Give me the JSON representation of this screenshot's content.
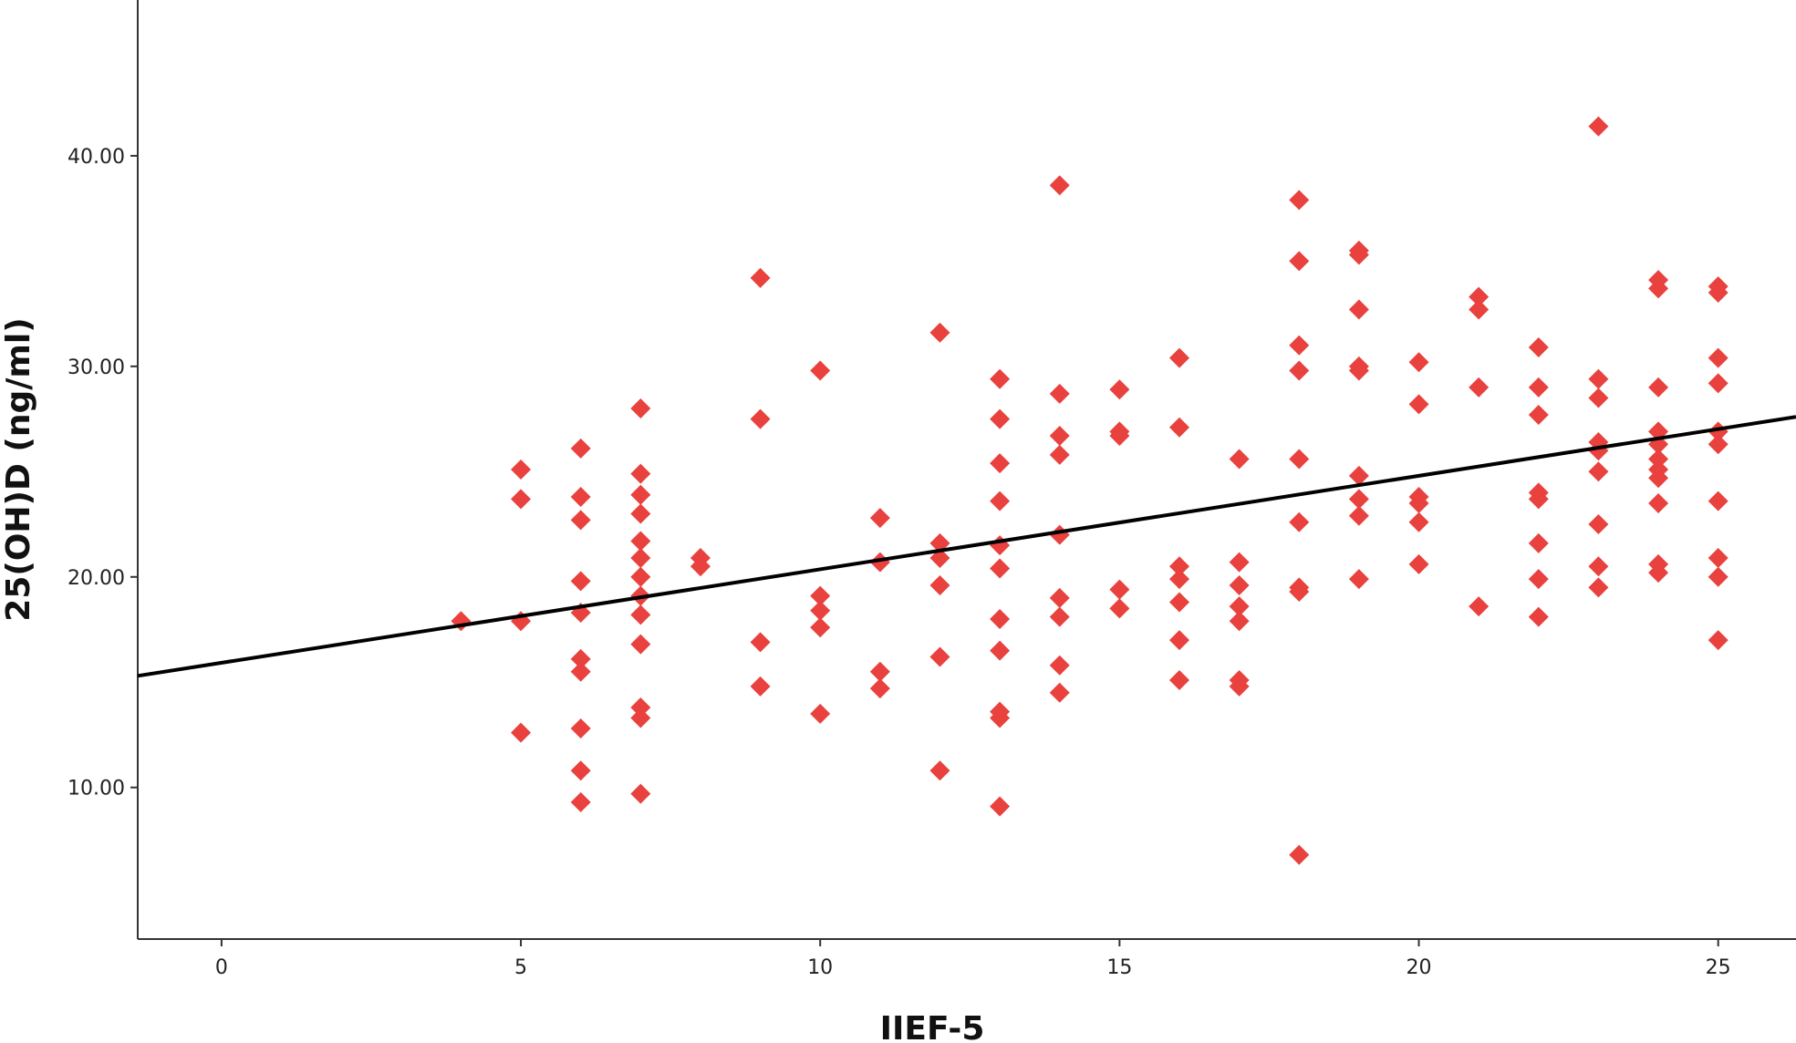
{
  "chart_data": {
    "type": "scatter",
    "xlabel": "IIEF-5",
    "ylabel": "25(OH)D (ng/ml)",
    "xlim": [
      -1.4,
      26.3
    ],
    "ylim": [
      2.8,
      47.4
    ],
    "x_ticks": [
      0,
      5,
      10,
      15,
      20,
      25
    ],
    "x_tick_labels": [
      "0",
      "5",
      "10",
      "15",
      "20",
      "25"
    ],
    "y_ticks": [
      10,
      20,
      30,
      40
    ],
    "y_tick_labels": [
      "10.00",
      "20.00",
      "30.00",
      "40.00"
    ],
    "grid": false,
    "marker_color": "#e8413e",
    "fit_line_color": "#000000",
    "fit_line": {
      "x": [
        -1.4,
        26.3
      ],
      "y": [
        15.3,
        27.6
      ]
    },
    "points": [
      {
        "x": 4,
        "y": 17.9
      },
      {
        "x": 5,
        "y": 25.1
      },
      {
        "x": 5,
        "y": 23.7
      },
      {
        "x": 5,
        "y": 17.9
      },
      {
        "x": 5,
        "y": 12.6
      },
      {
        "x": 6,
        "y": 26.1
      },
      {
        "x": 6,
        "y": 23.8
      },
      {
        "x": 6,
        "y": 22.7
      },
      {
        "x": 6,
        "y": 19.8
      },
      {
        "x": 6,
        "y": 18.3
      },
      {
        "x": 6,
        "y": 16.1
      },
      {
        "x": 6,
        "y": 15.5
      },
      {
        "x": 6,
        "y": 12.8
      },
      {
        "x": 6,
        "y": 10.8
      },
      {
        "x": 6,
        "y": 9.3
      },
      {
        "x": 7,
        "y": 28.0
      },
      {
        "x": 7,
        "y": 24.9
      },
      {
        "x": 7,
        "y": 23.9
      },
      {
        "x": 7,
        "y": 23.0
      },
      {
        "x": 7,
        "y": 21.7
      },
      {
        "x": 7,
        "y": 20.9
      },
      {
        "x": 7,
        "y": 20.0
      },
      {
        "x": 7,
        "y": 19.1
      },
      {
        "x": 7,
        "y": 18.2
      },
      {
        "x": 7,
        "y": 16.8
      },
      {
        "x": 7,
        "y": 13.8
      },
      {
        "x": 7,
        "y": 13.3
      },
      {
        "x": 7,
        "y": 9.7
      },
      {
        "x": 8,
        "y": 20.9
      },
      {
        "x": 8,
        "y": 20.5
      },
      {
        "x": 9,
        "y": 34.2
      },
      {
        "x": 9,
        "y": 27.5
      },
      {
        "x": 9,
        "y": 16.9
      },
      {
        "x": 9,
        "y": 14.8
      },
      {
        "x": 10,
        "y": 29.8
      },
      {
        "x": 10,
        "y": 19.1
      },
      {
        "x": 10,
        "y": 18.4
      },
      {
        "x": 10,
        "y": 17.6
      },
      {
        "x": 10,
        "y": 13.5
      },
      {
        "x": 11,
        "y": 22.8
      },
      {
        "x": 11,
        "y": 20.7
      },
      {
        "x": 11,
        "y": 15.5
      },
      {
        "x": 11,
        "y": 14.7
      },
      {
        "x": 12,
        "y": 31.6
      },
      {
        "x": 12,
        "y": 21.6
      },
      {
        "x": 12,
        "y": 20.9
      },
      {
        "x": 12,
        "y": 19.6
      },
      {
        "x": 12,
        "y": 16.2
      },
      {
        "x": 12,
        "y": 10.8
      },
      {
        "x": 13,
        "y": 29.4
      },
      {
        "x": 13,
        "y": 27.5
      },
      {
        "x": 13,
        "y": 25.4
      },
      {
        "x": 13,
        "y": 23.6
      },
      {
        "x": 13,
        "y": 21.5
      },
      {
        "x": 13,
        "y": 20.4
      },
      {
        "x": 13,
        "y": 18.0
      },
      {
        "x": 13,
        "y": 16.5
      },
      {
        "x": 13,
        "y": 13.6
      },
      {
        "x": 13,
        "y": 13.3
      },
      {
        "x": 13,
        "y": 9.1
      },
      {
        "x": 14,
        "y": 38.6
      },
      {
        "x": 14,
        "y": 28.7
      },
      {
        "x": 14,
        "y": 26.7
      },
      {
        "x": 14,
        "y": 25.8
      },
      {
        "x": 14,
        "y": 22.0
      },
      {
        "x": 14,
        "y": 19.0
      },
      {
        "x": 14,
        "y": 18.1
      },
      {
        "x": 14,
        "y": 15.8
      },
      {
        "x": 14,
        "y": 14.5
      },
      {
        "x": 15,
        "y": 28.9
      },
      {
        "x": 15,
        "y": 26.9
      },
      {
        "x": 15,
        "y": 26.7
      },
      {
        "x": 15,
        "y": 19.4
      },
      {
        "x": 15,
        "y": 18.5
      },
      {
        "x": 16,
        "y": 30.4
      },
      {
        "x": 16,
        "y": 27.1
      },
      {
        "x": 16,
        "y": 20.5
      },
      {
        "x": 16,
        "y": 19.9
      },
      {
        "x": 16,
        "y": 18.8
      },
      {
        "x": 16,
        "y": 17.0
      },
      {
        "x": 16,
        "y": 15.1
      },
      {
        "x": 17,
        "y": 25.6
      },
      {
        "x": 17,
        "y": 20.7
      },
      {
        "x": 17,
        "y": 19.6
      },
      {
        "x": 17,
        "y": 18.6
      },
      {
        "x": 17,
        "y": 17.9
      },
      {
        "x": 17,
        "y": 15.1
      },
      {
        "x": 17,
        "y": 14.8
      },
      {
        "x": 18,
        "y": 37.9
      },
      {
        "x": 18,
        "y": 35.0
      },
      {
        "x": 18,
        "y": 31.0
      },
      {
        "x": 18,
        "y": 29.8
      },
      {
        "x": 18,
        "y": 25.6
      },
      {
        "x": 18,
        "y": 22.6
      },
      {
        "x": 18,
        "y": 19.5
      },
      {
        "x": 18,
        "y": 19.3
      },
      {
        "x": 18,
        "y": 6.8
      },
      {
        "x": 19,
        "y": 35.5
      },
      {
        "x": 19,
        "y": 35.3
      },
      {
        "x": 19,
        "y": 32.7
      },
      {
        "x": 19,
        "y": 30.0
      },
      {
        "x": 19,
        "y": 29.8
      },
      {
        "x": 19,
        "y": 24.8
      },
      {
        "x": 19,
        "y": 23.7
      },
      {
        "x": 19,
        "y": 22.9
      },
      {
        "x": 19,
        "y": 19.9
      },
      {
        "x": 20,
        "y": 30.2
      },
      {
        "x": 20,
        "y": 28.2
      },
      {
        "x": 20,
        "y": 23.8
      },
      {
        "x": 20,
        "y": 23.5
      },
      {
        "x": 20,
        "y": 22.6
      },
      {
        "x": 20,
        "y": 20.6
      },
      {
        "x": 21,
        "y": 33.3
      },
      {
        "x": 21,
        "y": 32.7
      },
      {
        "x": 21,
        "y": 29.0
      },
      {
        "x": 21,
        "y": 18.6
      },
      {
        "x": 22,
        "y": 30.9
      },
      {
        "x": 22,
        "y": 29.0
      },
      {
        "x": 22,
        "y": 27.7
      },
      {
        "x": 22,
        "y": 24.0
      },
      {
        "x": 22,
        "y": 23.7
      },
      {
        "x": 22,
        "y": 21.6
      },
      {
        "x": 22,
        "y": 19.9
      },
      {
        "x": 22,
        "y": 18.1
      },
      {
        "x": 23,
        "y": 41.4
      },
      {
        "x": 23,
        "y": 29.4
      },
      {
        "x": 23,
        "y": 28.5
      },
      {
        "x": 23,
        "y": 26.4
      },
      {
        "x": 23,
        "y": 26.0
      },
      {
        "x": 23,
        "y": 25.0
      },
      {
        "x": 23,
        "y": 22.5
      },
      {
        "x": 23,
        "y": 20.5
      },
      {
        "x": 23,
        "y": 19.5
      },
      {
        "x": 24,
        "y": 34.1
      },
      {
        "x": 24,
        "y": 33.7
      },
      {
        "x": 24,
        "y": 29.0
      },
      {
        "x": 24,
        "y": 26.9
      },
      {
        "x": 24,
        "y": 26.3
      },
      {
        "x": 24,
        "y": 25.6
      },
      {
        "x": 24,
        "y": 25.1
      },
      {
        "x": 24,
        "y": 24.7
      },
      {
        "x": 24,
        "y": 23.5
      },
      {
        "x": 24,
        "y": 20.6
      },
      {
        "x": 24,
        "y": 20.2
      },
      {
        "x": 25,
        "y": 33.8
      },
      {
        "x": 25,
        "y": 33.5
      },
      {
        "x": 25,
        "y": 30.4
      },
      {
        "x": 25,
        "y": 29.2
      },
      {
        "x": 25,
        "y": 26.9
      },
      {
        "x": 25,
        "y": 26.3
      },
      {
        "x": 25,
        "y": 23.6
      },
      {
        "x": 25,
        "y": 20.9
      },
      {
        "x": 25,
        "y": 20.0
      },
      {
        "x": 25,
        "y": 17.0
      }
    ]
  }
}
